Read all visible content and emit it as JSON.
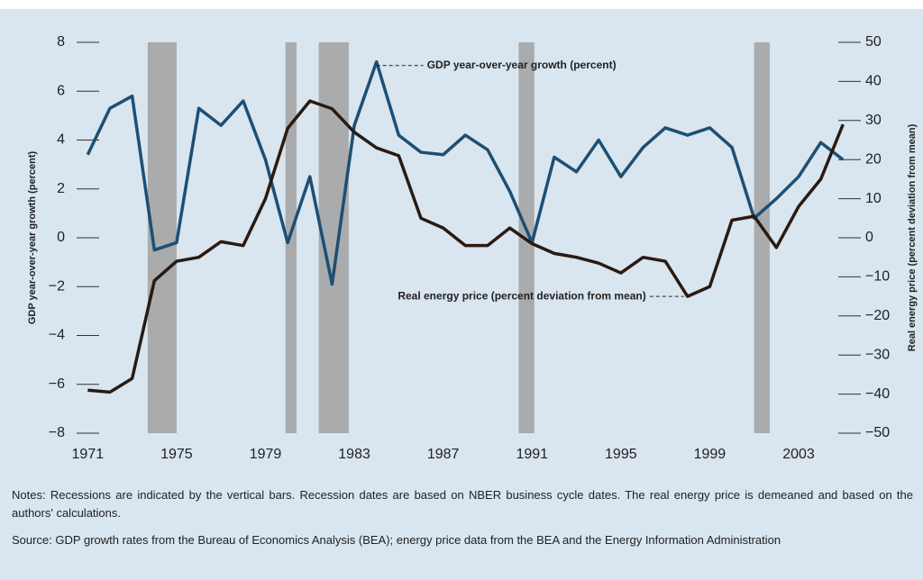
{
  "chart_data": {
    "type": "line",
    "x": [
      1971,
      1972,
      1973,
      1974,
      1975,
      1976,
      1977,
      1978,
      1979,
      1980,
      1981,
      1982,
      1983,
      1984,
      1985,
      1986,
      1987,
      1988,
      1989,
      1990,
      1991,
      1992,
      1993,
      1994,
      1995,
      1996,
      1997,
      1998,
      1999,
      2000,
      2001,
      2002,
      2003,
      2004,
      2005
    ],
    "series": [
      {
        "name": "GDP year-over-year growth (percent)",
        "color": "#1d4f74",
        "axis": "y",
        "values": [
          3.4,
          5.3,
          5.8,
          -0.5,
          -0.2,
          5.3,
          4.6,
          5.6,
          3.2,
          -0.2,
          2.5,
          -1.9,
          4.6,
          7.2,
          4.2,
          3.5,
          3.4,
          4.2,
          3.6,
          1.9,
          -0.2,
          3.3,
          2.7,
          4.0,
          2.5,
          3.7,
          4.5,
          4.2,
          4.5,
          3.7,
          0.8,
          1.6,
          2.5,
          3.9,
          3.2
        ]
      },
      {
        "name": "Real energy price (percent deviation from mean)",
        "color": "#2a1a10",
        "axis": "y2",
        "values": [
          -39,
          -39.5,
          -36,
          -11,
          -6,
          -5,
          -1,
          -2,
          10,
          28,
          35,
          33,
          27,
          23,
          21,
          5,
          2.5,
          -2,
          -2,
          2.5,
          -1.5,
          -4,
          -5,
          -6.5,
          -9,
          -5,
          -6,
          -15,
          -12.5,
          4.5,
          5.5,
          -2.5,
          8,
          15,
          29
        ]
      }
    ],
    "recessions": [
      [
        1973.7,
        1975.0
      ],
      [
        1979.9,
        1980.4
      ],
      [
        1981.4,
        1982.75
      ],
      [
        1990.4,
        1991.1
      ],
      [
        2001.0,
        2001.7
      ]
    ],
    "xlim": [
      1970.5,
      2005.8
    ],
    "xticks": [
      1971,
      1975,
      1979,
      1983,
      1987,
      1991,
      1995,
      1999,
      2003
    ],
    "ylabel": "GDP year-over-year growth (percent)",
    "ylim": [
      -8,
      8
    ],
    "yticks": [
      {
        "value": -8,
        "label": "−8"
      },
      {
        "value": -6,
        "label": "−6"
      },
      {
        "value": -4,
        "label": "−4"
      },
      {
        "value": -2,
        "label": "−2"
      },
      0,
      2,
      4,
      6,
      8
    ],
    "y2label": "Real energy price (percent deviation from mean)",
    "y2lim": [
      -50,
      50
    ],
    "y2ticks": [
      {
        "value": -50,
        "label": "−50"
      },
      {
        "value": -40,
        "label": "−40"
      },
      {
        "value": -30,
        "label": "−30"
      },
      {
        "value": -20,
        "label": "−20"
      },
      {
        "value": -10,
        "label": "−10"
      },
      0,
      10,
      20,
      30,
      40,
      50
    ],
    "notes": "Notes: Recessions are indicated by the vertical bars. Recession dates are based on NBER business cycle dates. The real energy price is demeaned and based on the authors' calculations.",
    "source": "Source: GDP growth rates from the Bureau of Economics Analysis (BEA); energy price data from the BEA and the Energy Information Administration"
  }
}
